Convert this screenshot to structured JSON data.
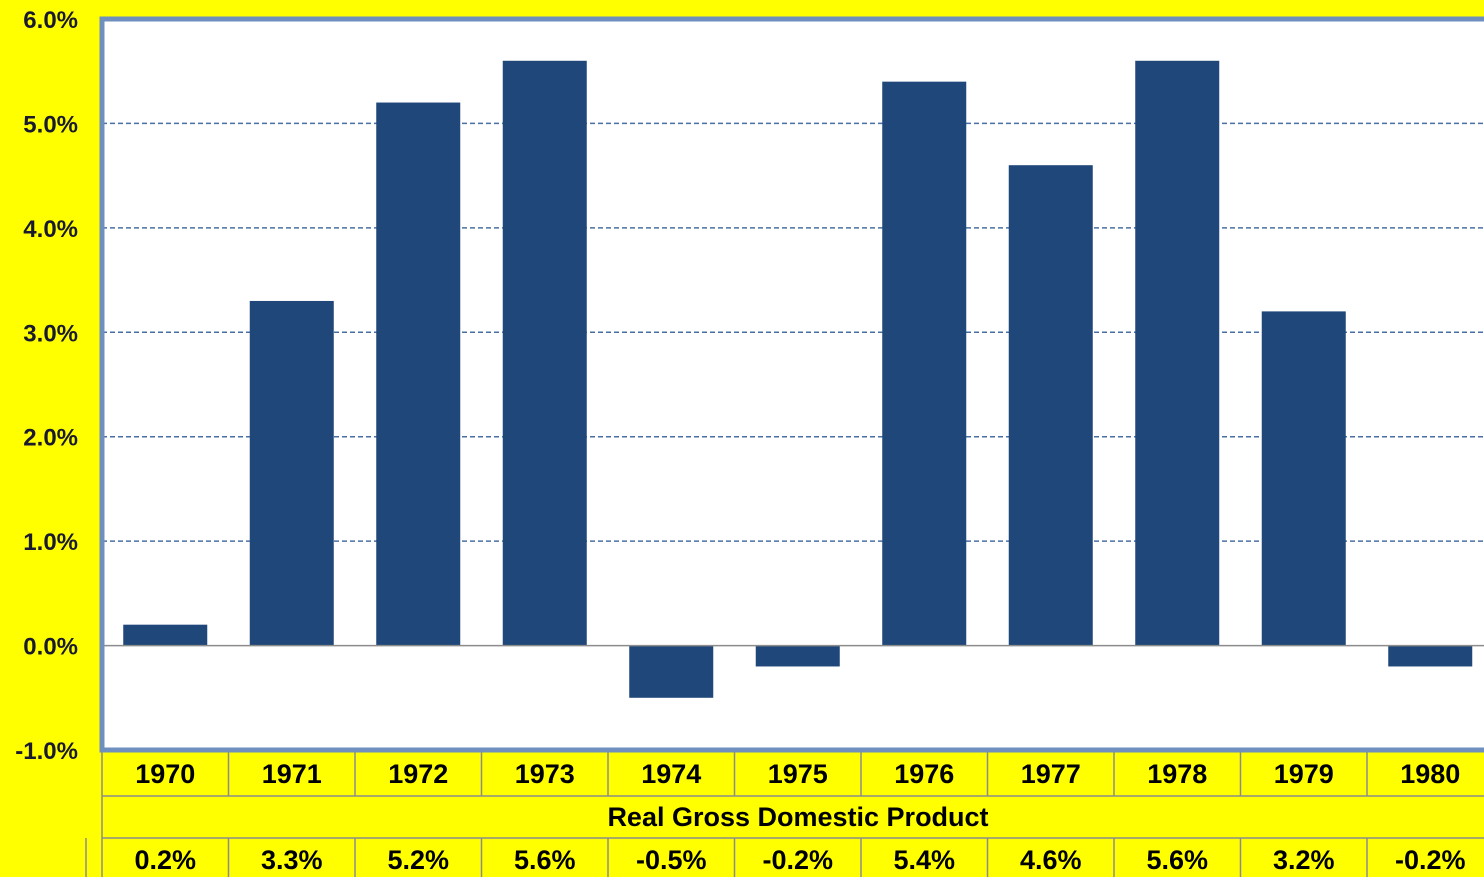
{
  "chart_data": {
    "type": "bar",
    "categories": [
      "1970",
      "1971",
      "1972",
      "1973",
      "1974",
      "1975",
      "1976",
      "1977",
      "1978",
      "1979",
      "1980"
    ],
    "series": [
      {
        "name": "Real Gross Domestic Product",
        "values": [
          0.2,
          3.3,
          5.2,
          5.6,
          -0.5,
          -0.2,
          5.4,
          4.6,
          5.6,
          3.2,
          -0.2
        ]
      }
    ],
    "value_labels": [
      "0.2%",
      "3.3%",
      "5.2%",
      "5.6%",
      "-0.5%",
      "-0.2%",
      "5.4%",
      "4.6%",
      "5.6%",
      "3.2%",
      "-0.2%"
    ],
    "yticks": [
      "6.0%",
      "5.0%",
      "4.0%",
      "3.0%",
      "2.0%",
      "1.0%",
      "0.0%",
      "-1.0%"
    ],
    "ylim": [
      -1.0,
      6.0
    ],
    "grid": true,
    "data_table": {
      "row_label": "Real Gross Domestic Product"
    },
    "colors": {
      "background": "#ffff00",
      "plot_bg": "#ffffff",
      "bar": "#1f477a",
      "axis": "#6f8fbf",
      "grid": "#4a6fa5"
    }
  }
}
